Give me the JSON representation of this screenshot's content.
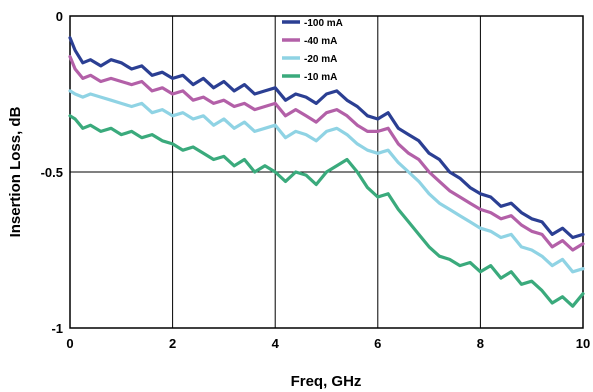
{
  "chart_data": {
    "type": "line",
    "title": "",
    "xlabel": "Freq, GHz",
    "ylabel": "Insertion Loss, dB",
    "xlim": [
      0,
      10
    ],
    "ylim": [
      -1,
      0
    ],
    "x_ticks": [
      "0",
      "2",
      "4",
      "6",
      "8",
      "10"
    ],
    "y_ticks": [
      "0",
      "-0.5",
      "-1"
    ],
    "grid": true,
    "legend_position": "top-center",
    "series": [
      {
        "name": "-100 mA",
        "color": "#2b3f93",
        "x": [
          0,
          0.1,
          0.25,
          0.4,
          0.6,
          0.8,
          1,
          1.2,
          1.4,
          1.6,
          1.8,
          2,
          2.2,
          2.4,
          2.6,
          2.8,
          3,
          3.2,
          3.4,
          3.6,
          3.8,
          4,
          4.2,
          4.4,
          4.6,
          4.8,
          5,
          5.2,
          5.4,
          5.6,
          5.8,
          6,
          6.2,
          6.4,
          6.6,
          6.8,
          7,
          7.2,
          7.4,
          7.6,
          7.8,
          8,
          8.2,
          8.4,
          8.6,
          8.8,
          9,
          9.2,
          9.4,
          9.6,
          9.8,
          10
        ],
        "y": [
          -0.07,
          -0.11,
          -0.15,
          -0.14,
          -0.16,
          -0.14,
          -0.15,
          -0.17,
          -0.16,
          -0.19,
          -0.18,
          -0.2,
          -0.19,
          -0.22,
          -0.2,
          -0.23,
          -0.21,
          -0.24,
          -0.22,
          -0.25,
          -0.24,
          -0.23,
          -0.27,
          -0.25,
          -0.26,
          -0.28,
          -0.25,
          -0.24,
          -0.27,
          -0.29,
          -0.32,
          -0.33,
          -0.31,
          -0.36,
          -0.38,
          -0.4,
          -0.44,
          -0.46,
          -0.5,
          -0.52,
          -0.55,
          -0.57,
          -0.58,
          -0.61,
          -0.6,
          -0.63,
          -0.65,
          -0.66,
          -0.7,
          -0.68,
          -0.71,
          -0.7
        ]
      },
      {
        "name": "-40 mA",
        "color": "#b360a8",
        "x": [
          0,
          0.1,
          0.25,
          0.4,
          0.6,
          0.8,
          1,
          1.2,
          1.4,
          1.6,
          1.8,
          2,
          2.2,
          2.4,
          2.6,
          2.8,
          3,
          3.2,
          3.4,
          3.6,
          3.8,
          4,
          4.2,
          4.4,
          4.6,
          4.8,
          5,
          5.2,
          5.4,
          5.6,
          5.8,
          6,
          6.2,
          6.4,
          6.6,
          6.8,
          7,
          7.2,
          7.4,
          7.6,
          7.8,
          8,
          8.2,
          8.4,
          8.6,
          8.8,
          9,
          9.2,
          9.4,
          9.6,
          9.8,
          10
        ],
        "y": [
          -0.13,
          -0.17,
          -0.2,
          -0.19,
          -0.21,
          -0.2,
          -0.21,
          -0.22,
          -0.21,
          -0.24,
          -0.23,
          -0.25,
          -0.24,
          -0.27,
          -0.26,
          -0.28,
          -0.27,
          -0.29,
          -0.28,
          -0.3,
          -0.29,
          -0.28,
          -0.32,
          -0.3,
          -0.32,
          -0.34,
          -0.31,
          -0.3,
          -0.32,
          -0.35,
          -0.37,
          -0.37,
          -0.36,
          -0.41,
          -0.44,
          -0.46,
          -0.5,
          -0.53,
          -0.56,
          -0.58,
          -0.6,
          -0.62,
          -0.63,
          -0.65,
          -0.64,
          -0.67,
          -0.69,
          -0.7,
          -0.74,
          -0.72,
          -0.75,
          -0.73
        ]
      },
      {
        "name": "-20 mA",
        "color": "#8fd3e4",
        "x": [
          0,
          0.1,
          0.25,
          0.4,
          0.6,
          0.8,
          1,
          1.2,
          1.4,
          1.6,
          1.8,
          2,
          2.2,
          2.4,
          2.6,
          2.8,
          3,
          3.2,
          3.4,
          3.6,
          3.8,
          4,
          4.2,
          4.4,
          4.6,
          4.8,
          5,
          5.2,
          5.4,
          5.6,
          5.8,
          6,
          6.2,
          6.4,
          6.6,
          6.8,
          7,
          7.2,
          7.4,
          7.6,
          7.8,
          8,
          8.2,
          8.4,
          8.6,
          8.8,
          9,
          9.2,
          9.4,
          9.6,
          9.8,
          10
        ],
        "y": [
          -0.24,
          -0.25,
          -0.26,
          -0.25,
          -0.26,
          -0.27,
          -0.28,
          -0.29,
          -0.28,
          -0.31,
          -0.3,
          -0.32,
          -0.31,
          -0.33,
          -0.32,
          -0.35,
          -0.33,
          -0.36,
          -0.34,
          -0.37,
          -0.36,
          -0.35,
          -0.39,
          -0.37,
          -0.38,
          -0.4,
          -0.37,
          -0.36,
          -0.38,
          -0.41,
          -0.43,
          -0.44,
          -0.43,
          -0.47,
          -0.5,
          -0.53,
          -0.57,
          -0.6,
          -0.62,
          -0.64,
          -0.66,
          -0.68,
          -0.69,
          -0.71,
          -0.7,
          -0.74,
          -0.75,
          -0.77,
          -0.8,
          -0.78,
          -0.82,
          -0.81
        ]
      },
      {
        "name": "-10 mA",
        "color": "#3aaa7c",
        "x": [
          0,
          0.1,
          0.25,
          0.4,
          0.6,
          0.8,
          1,
          1.2,
          1.4,
          1.6,
          1.8,
          2,
          2.2,
          2.4,
          2.6,
          2.8,
          3,
          3.2,
          3.4,
          3.6,
          3.8,
          4,
          4.2,
          4.4,
          4.6,
          4.8,
          5,
          5.2,
          5.4,
          5.6,
          5.8,
          6,
          6.2,
          6.4,
          6.6,
          6.8,
          7,
          7.2,
          7.4,
          7.6,
          7.8,
          8,
          8.2,
          8.4,
          8.6,
          8.8,
          9,
          9.2,
          9.4,
          9.6,
          9.8,
          10
        ],
        "y": [
          -0.32,
          -0.33,
          -0.36,
          -0.35,
          -0.37,
          -0.36,
          -0.38,
          -0.37,
          -0.39,
          -0.38,
          -0.4,
          -0.41,
          -0.43,
          -0.42,
          -0.44,
          -0.46,
          -0.45,
          -0.48,
          -0.46,
          -0.5,
          -0.48,
          -0.5,
          -0.53,
          -0.5,
          -0.51,
          -0.54,
          -0.5,
          -0.48,
          -0.46,
          -0.5,
          -0.55,
          -0.58,
          -0.57,
          -0.62,
          -0.66,
          -0.7,
          -0.74,
          -0.77,
          -0.78,
          -0.8,
          -0.79,
          -0.82,
          -0.8,
          -0.84,
          -0.82,
          -0.86,
          -0.85,
          -0.88,
          -0.92,
          -0.9,
          -0.93,
          -0.89
        ]
      }
    ]
  }
}
